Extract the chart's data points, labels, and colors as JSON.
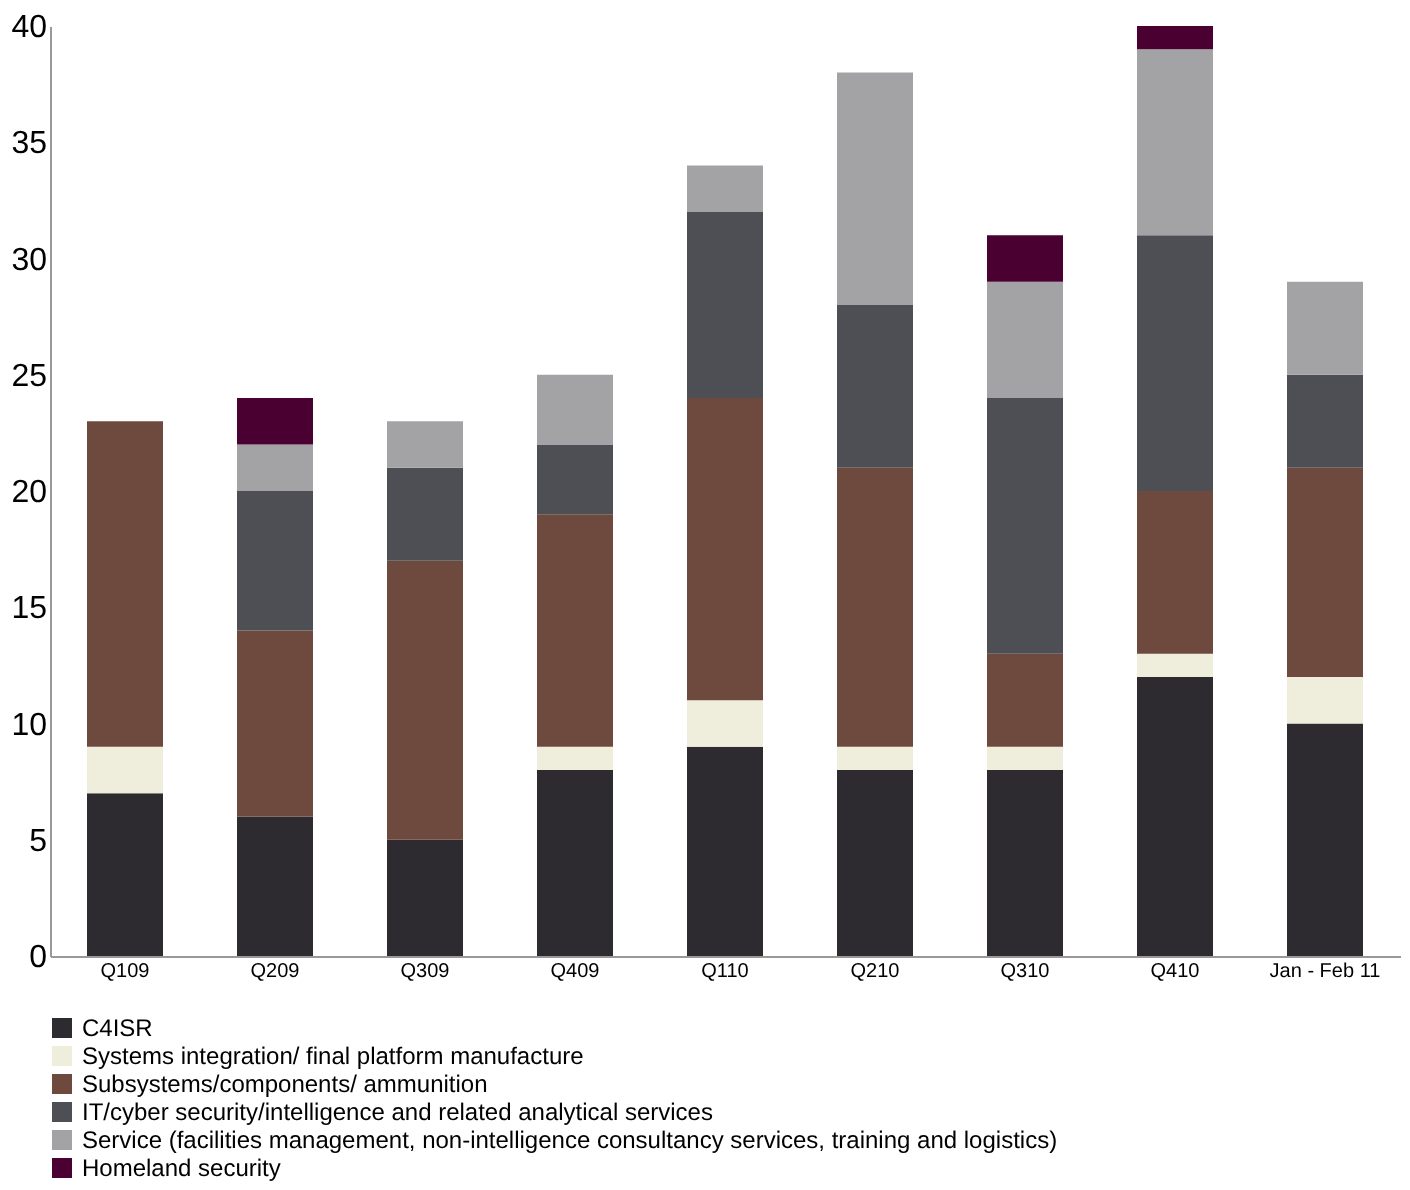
{
  "chart_data": {
    "type": "bar",
    "stacked": true,
    "categories": [
      "Q109",
      "Q209",
      "Q309",
      "Q409",
      "Q110",
      "Q210",
      "Q310",
      "Q410",
      "Jan - Feb 11"
    ],
    "ylim": [
      0,
      40
    ],
    "yticks": [
      0,
      5,
      10,
      15,
      20,
      25,
      30,
      35,
      40
    ],
    "grid": false,
    "legend": "bottom",
    "series": [
      {
        "name": "C4ISR",
        "color": "#2e2b30",
        "values": [
          7,
          6,
          5,
          8,
          9,
          8,
          8,
          12,
          10
        ]
      },
      {
        "name": "Systems integration/ final platform manufacture",
        "color": "#efeedd",
        "values": [
          2,
          0,
          0,
          1,
          2,
          1,
          1,
          1,
          2
        ]
      },
      {
        "name": "Subsystems/components/ ammunition",
        "color": "#6e4a3e",
        "values": [
          14,
          8,
          12,
          10,
          13,
          12,
          4,
          7,
          9
        ]
      },
      {
        "name": "IT/cyber security/intelligence and related analytical services",
        "color": "#4d4f55",
        "values": [
          0,
          6,
          4,
          3,
          8,
          7,
          11,
          11,
          4
        ]
      },
      {
        "name": "Service (facilities management, non-intelligence consultancy services, training and logistics)",
        "color": "#a3a3a6",
        "values": [
          0,
          2,
          2,
          3,
          2,
          10,
          5,
          8,
          4
        ]
      },
      {
        "name": "Homeland security",
        "color": "#4a0030",
        "values": [
          0,
          2,
          0,
          0,
          0,
          0,
          2,
          1,
          0
        ]
      }
    ]
  }
}
